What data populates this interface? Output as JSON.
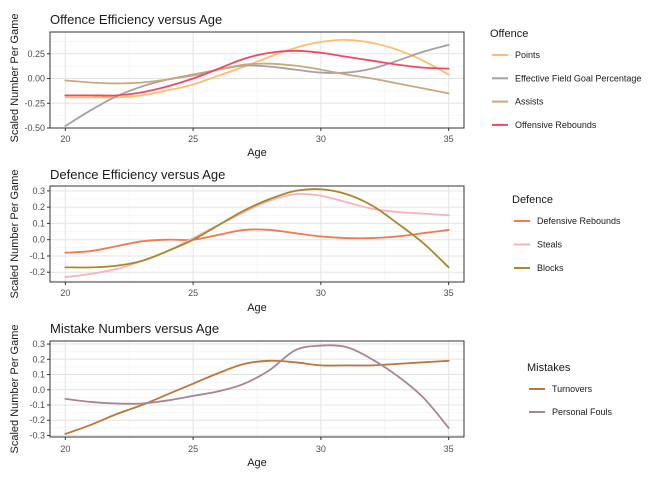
{
  "chart_data": [
    {
      "type": "line",
      "title": "Offence Efficiency versus Age",
      "xlabel": "Age",
      "ylabel": "Scaled Number Per Game",
      "xlim": [
        19.4,
        35.6
      ],
      "ylim": [
        -0.5,
        0.47
      ],
      "xticks": [
        20,
        25,
        30,
        35
      ],
      "xtick_labels": [
        "20",
        "25",
        "30",
        "35"
      ],
      "yticks": [
        -0.5,
        -0.25,
        0.0,
        0.25
      ],
      "ytick_labels": [
        "-0.50",
        "-0.25",
        "0.00",
        "0.25"
      ],
      "grid": true,
      "legend": {
        "title": "Offence",
        "position": "right"
      },
      "x": [
        20,
        21,
        22,
        23,
        24,
        25,
        26,
        27,
        28,
        29,
        30,
        31,
        32,
        33,
        34,
        35
      ],
      "series": [
        {
          "name": "Points",
          "color": "#FDBF6F",
          "values": [
            -0.19,
            -0.19,
            -0.19,
            -0.17,
            -0.12,
            -0.06,
            0.03,
            0.12,
            0.22,
            0.31,
            0.37,
            0.39,
            0.36,
            0.29,
            0.18,
            0.04
          ]
        },
        {
          "name": "Effective Field Goal Percentage",
          "color": "#A6A1A1",
          "values": [
            -0.48,
            -0.32,
            -0.18,
            -0.08,
            -0.01,
            0.04,
            0.09,
            0.13,
            0.12,
            0.09,
            0.06,
            0.06,
            0.1,
            0.18,
            0.27,
            0.34
          ]
        },
        {
          "name": "Assists",
          "color": "#C8A97E",
          "values": [
            -0.02,
            -0.04,
            -0.05,
            -0.04,
            -0.01,
            0.03,
            0.09,
            0.14,
            0.15,
            0.13,
            0.09,
            0.04,
            0.0,
            -0.05,
            -0.1,
            -0.15
          ]
        },
        {
          "name": "Offensive Rebounds",
          "color": "#EF4A65",
          "values": [
            -0.17,
            -0.17,
            -0.17,
            -0.14,
            -0.08,
            0.0,
            0.1,
            0.2,
            0.26,
            0.28,
            0.26,
            0.22,
            0.18,
            0.14,
            0.11,
            0.1
          ]
        }
      ]
    },
    {
      "type": "line",
      "title": "Defence Efficiency versus Age",
      "xlabel": "Age",
      "ylabel": "Scaled Number Per Game",
      "xlim": [
        19.4,
        35.6
      ],
      "ylim": [
        -0.26,
        0.33
      ],
      "xticks": [
        20,
        25,
        30,
        35
      ],
      "xtick_labels": [
        "20",
        "25",
        "30",
        "35"
      ],
      "yticks": [
        -0.2,
        -0.1,
        0.0,
        0.1,
        0.2,
        0.3
      ],
      "ytick_labels": [
        "-0.2",
        "-0.1",
        "0.0",
        "0.1",
        "0.2",
        "0.3"
      ],
      "grid": true,
      "legend": {
        "title": "Defence",
        "position": "right"
      },
      "x": [
        20,
        21,
        22,
        23,
        24,
        25,
        26,
        27,
        28,
        29,
        30,
        31,
        32,
        33,
        34,
        35
      ],
      "series": [
        {
          "name": "Defensive Rebounds",
          "color": "#F07B52",
          "values": [
            -0.08,
            -0.07,
            -0.04,
            -0.01,
            0.0,
            0.0,
            0.03,
            0.06,
            0.06,
            0.04,
            0.02,
            0.01,
            0.01,
            0.02,
            0.04,
            0.06
          ]
        },
        {
          "name": "Steals",
          "color": "#F6B3BE",
          "values": [
            -0.23,
            -0.21,
            -0.18,
            -0.13,
            -0.07,
            0.01,
            0.09,
            0.17,
            0.24,
            0.28,
            0.27,
            0.23,
            0.19,
            0.17,
            0.16,
            0.15
          ]
        },
        {
          "name": "Blocks",
          "color": "#A8882B",
          "values": [
            -0.17,
            -0.17,
            -0.16,
            -0.13,
            -0.07,
            0.0,
            0.09,
            0.18,
            0.25,
            0.3,
            0.31,
            0.28,
            0.21,
            0.1,
            -0.02,
            -0.17
          ]
        }
      ]
    },
    {
      "type": "line",
      "title": "Mistake Numbers versus Age",
      "xlabel": "Age",
      "ylabel": "Scaled Number Per Game",
      "xlim": [
        19.4,
        35.6
      ],
      "ylim": [
        -0.31,
        0.32
      ],
      "xticks": [
        20,
        25,
        30,
        35
      ],
      "xtick_labels": [
        "20",
        "25",
        "30",
        "35"
      ],
      "yticks": [
        -0.3,
        -0.2,
        -0.1,
        0.0,
        0.1,
        0.2,
        0.3
      ],
      "ytick_labels": [
        "-0.3",
        "-0.2",
        "-0.1",
        "0.0",
        "0.1",
        "0.2",
        "0.3"
      ],
      "grid": true,
      "legend": {
        "title": "Mistakes",
        "position": "right"
      },
      "x": [
        20,
        21,
        22,
        23,
        24,
        25,
        26,
        27,
        28,
        29,
        30,
        31,
        32,
        33,
        34,
        35
      ],
      "series": [
        {
          "name": "Turnovers",
          "color": "#B8783C",
          "values": [
            -0.29,
            -0.23,
            -0.16,
            -0.1,
            -0.03,
            0.04,
            0.11,
            0.17,
            0.19,
            0.18,
            0.16,
            0.16,
            0.16,
            0.17,
            0.18,
            0.19
          ]
        },
        {
          "name": "Personal Fouls",
          "color": "#A88691",
          "values": [
            -0.06,
            -0.08,
            -0.09,
            -0.09,
            -0.07,
            -0.04,
            -0.01,
            0.04,
            0.13,
            0.26,
            0.29,
            0.28,
            0.2,
            0.09,
            -0.05,
            -0.25
          ]
        }
      ]
    }
  ]
}
